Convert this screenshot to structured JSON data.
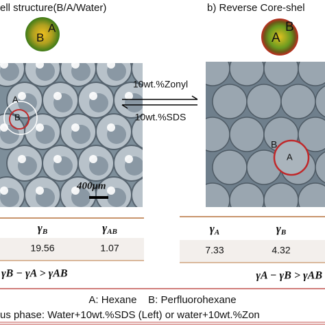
{
  "figure": {
    "left_title": "ell structure(B/A/Water)",
    "right_title": "b) Reverse Core-shel",
    "left_sphere": {
      "inner": "B",
      "outer": "A"
    },
    "right_sphere": {
      "inner": "A",
      "outer": "B"
    },
    "arrows": {
      "forward": "10wt.%Zonyl",
      "backward": "10wt.%SDS"
    },
    "left_photo": {
      "label_outer": "A",
      "label_inner": "B",
      "scale": "400μm"
    },
    "right_photo": {
      "label_outer": "B",
      "label_inner": "A"
    },
    "left_table": {
      "headers": [
        {
          "symbol": "γ",
          "sub": "B"
        },
        {
          "symbol": "γ",
          "sub": "AB"
        }
      ],
      "values": [
        19.56,
        1.07
      ],
      "condition": "γB − γA > γAB"
    },
    "right_table": {
      "headers": [
        {
          "symbol": "γ",
          "sub": "A"
        },
        {
          "symbol": "γ",
          "sub": "B"
        }
      ],
      "values": [
        7.33,
        4.32
      ],
      "condition": "γA − γB > γAB"
    },
    "legend": "A: Hexane    B: Perfluorohexane",
    "phase_note": "us phase: Water+10wt.%SDS (Left) or water+10wt.%Zon"
  }
}
